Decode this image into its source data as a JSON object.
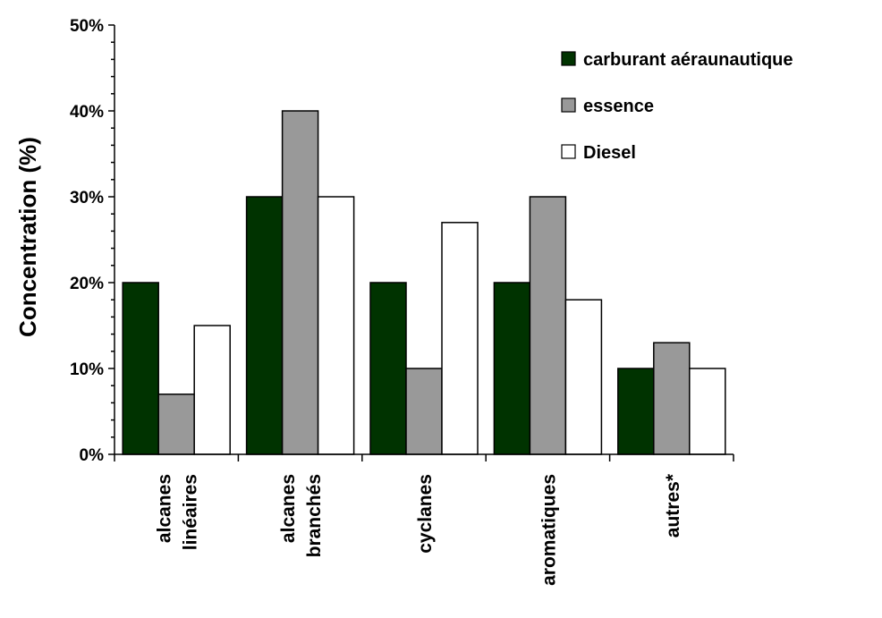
{
  "chart_data": {
    "type": "bar",
    "title": "",
    "xlabel": "",
    "ylabel": "Concentration (%)",
    "ylim": [
      0,
      50
    ],
    "yticks": [
      "0%",
      "10%",
      "20%",
      "30%",
      "40%",
      "50%"
    ],
    "grid": false,
    "legend_position": "top-right",
    "categories": [
      [
        "alcanes",
        "linéaires"
      ],
      [
        "alcanes",
        "branchés"
      ],
      [
        "cyclanes"
      ],
      [
        "aromatiques"
      ],
      [
        "autres*"
      ]
    ],
    "series": [
      {
        "name": "carburant aéraunautique",
        "color": "#003300",
        "values": [
          20,
          30,
          20,
          20,
          10
        ]
      },
      {
        "name": "essence",
        "color": "#999999",
        "values": [
          7,
          40,
          10,
          30,
          13
        ]
      },
      {
        "name": "Diesel",
        "color": "#ffffff",
        "values": [
          15,
          30,
          27,
          18,
          10
        ]
      }
    ]
  }
}
